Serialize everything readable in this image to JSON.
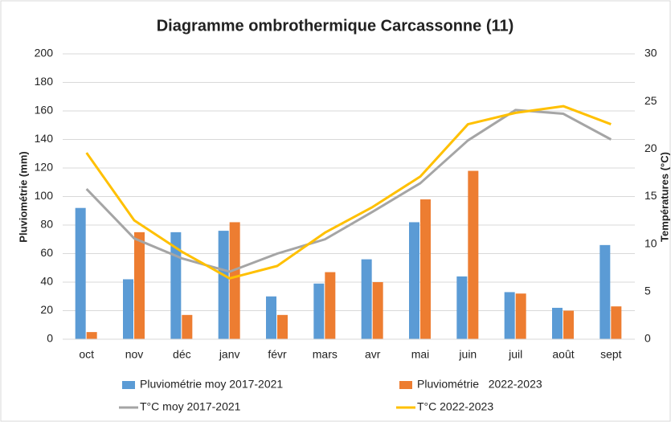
{
  "chart_data": {
    "type": "bar-line",
    "title": "Diagramme ombrothermique Carcassonne (11)",
    "y_label": "Pluviométrie (mm)",
    "y2_label": "Températures (°C)",
    "categories": [
      "oct",
      "nov",
      "déc",
      "janv",
      "févr",
      "mars",
      "avr",
      "mai",
      "juin",
      "juil",
      "août",
      "sept"
    ],
    "series": [
      {
        "name": "Pluviométrie moy 2017-2021",
        "kind": "bar",
        "color": "#5b9bd5",
        "values": [
          92,
          42,
          75,
          76,
          30,
          39,
          56,
          82,
          44,
          33,
          22,
          66
        ]
      },
      {
        "name": "Pluviométrie   2022-2023",
        "kind": "bar",
        "color": "#ed7d31",
        "values": [
          5,
          75,
          17,
          82,
          17,
          47,
          40,
          98,
          118,
          32,
          20,
          23
        ]
      },
      {
        "name": "T°C moy 2017-2021",
        "kind": "line",
        "axis": "y2",
        "color": "#a5a5a5",
        "values": [
          15.8,
          10.6,
          8.5,
          7.1,
          9.0,
          10.5,
          13.4,
          16.4,
          20.9,
          24.1,
          23.7,
          21.0
        ]
      },
      {
        "name": "T°C 2022-2023",
        "kind": "line",
        "axis": "y2",
        "color": "#ffc000",
        "values": [
          19.6,
          12.5,
          9.2,
          6.4,
          7.7,
          11.2,
          13.9,
          17.1,
          22.6,
          23.8,
          24.5,
          22.6
        ]
      }
    ],
    "ylim": [
      0,
      200
    ],
    "yticks": [
      0,
      20,
      40,
      60,
      80,
      100,
      120,
      140,
      160,
      180,
      200
    ],
    "y2lim": [
      0,
      30
    ],
    "y2ticks": [
      0,
      5,
      10,
      15,
      20,
      25,
      30
    ],
    "legend": "bottom"
  }
}
